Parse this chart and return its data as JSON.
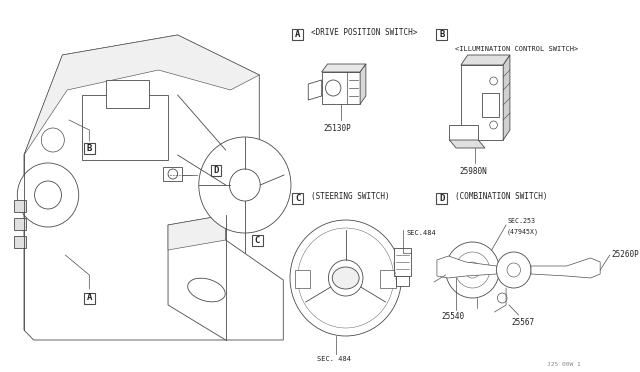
{
  "bg_color": "#ffffff",
  "line_color": "#4a4a4a",
  "label_color": "#222222",
  "fig_w": 6.4,
  "fig_h": 3.72,
  "dpi": 100,
  "xlim": [
    0,
    640
  ],
  "ylim": [
    0,
    372
  ]
}
